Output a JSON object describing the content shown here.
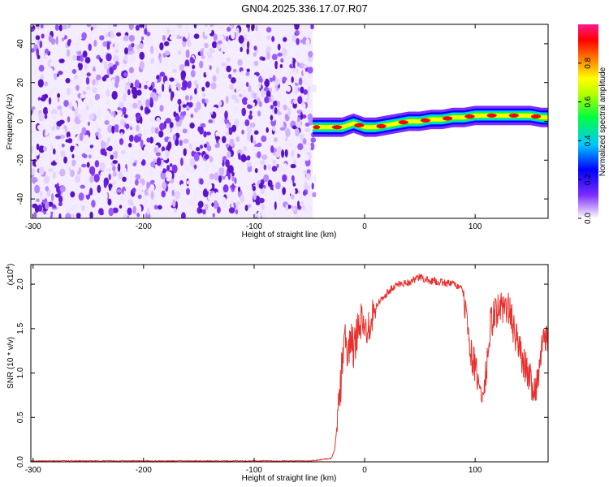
{
  "title": "GN04.2025.336.17.07.R07",
  "chart_data": [
    {
      "type": "heatmap",
      "xlabel": "Height of straight line (km)",
      "ylabel": "Frequency (Hz)",
      "xlim": [
        -302,
        166
      ],
      "ylim": [
        -50,
        50
      ],
      "x_ticks": [
        -300,
        -200,
        -100,
        0,
        100
      ],
      "x_tick_labels": [
        "-300",
        "-200",
        "-100",
        "0",
        "100"
      ],
      "y_ticks": [
        -40,
        -20,
        0,
        20,
        40
      ],
      "y_tick_labels": [
        "-40",
        "-20",
        "0",
        "20",
        "40"
      ],
      "noise_region_km": [
        -302,
        -47
      ],
      "ridge": {
        "x_km": [
          -47,
          -40,
          -30,
          -20,
          -10,
          0,
          10,
          20,
          30,
          40,
          50,
          60,
          70,
          80,
          90,
          100,
          110,
          120,
          130,
          140,
          150,
          160,
          166
        ],
        "freq_hz": [
          -3,
          -3,
          -3,
          -3,
          -1,
          -3,
          -3,
          -2,
          -1,
          0,
          0,
          1,
          1,
          2,
          2,
          3,
          3,
          3,
          3,
          3,
          3,
          2,
          2
        ],
        "peak_amplitude": 1.0
      },
      "colorbar": {
        "label": "Normalized spectral amplitude",
        "ticks": [
          0.0,
          0.2,
          0.4,
          0.6,
          0.8
        ],
        "tick_labels": [
          "0.0",
          "0.2",
          "0.4",
          "0.6",
          "0.8"
        ],
        "colors": [
          "#ffffff",
          "#7b2cff",
          "#0000ff",
          "#00c8ff",
          "#00ff40",
          "#b4ff00",
          "#ffff00",
          "#ff8000",
          "#ff0000",
          "#ff1a8c"
        ]
      },
      "grid": false
    },
    {
      "type": "line",
      "xlabel": "Height of straight line (km)",
      "ylabel": "SNR (10 * v/v)",
      "y_multiplier_label": "(x10",
      "y_multiplier_exp": "4",
      "y_multiplier_close": ")",
      "xlim": [
        -302,
        166
      ],
      "ylim": [
        0,
        2.22
      ],
      "x_ticks": [
        -300,
        -200,
        -100,
        0,
        100
      ],
      "x_tick_labels": [
        "-300",
        "-200",
        "-100",
        "0",
        "100"
      ],
      "y_ticks": [
        0,
        0.5,
        1.0,
        1.5,
        2.0
      ],
      "y_tick_labels": [
        "0.0",
        "0.5",
        "1.0",
        "1.5",
        "2.0"
      ],
      "line_color": "#e8302c",
      "series": [
        {
          "x": [
            -302,
            -250,
            -200,
            -150,
            -100,
            -50,
            -30,
            -27,
            -25,
            -22,
            -20,
            -17,
            -15,
            -12,
            -10,
            -5,
            0,
            10,
            20,
            30,
            40,
            50,
            55,
            60,
            70,
            80,
            86,
            90,
            92,
            94,
            97,
            100,
            103,
            106,
            108,
            110,
            114,
            118,
            122,
            126,
            130,
            134,
            138,
            142,
            146,
            150,
            153,
            156,
            159,
            162,
            166
          ],
          "y": [
            0.01,
            0.01,
            0.01,
            0.01,
            0.01,
            0.01,
            0.04,
            0.15,
            0.4,
            0.8,
            1.2,
            1.4,
            1.1,
            1.5,
            1.2,
            1.65,
            1.45,
            1.75,
            1.9,
            2.0,
            2.02,
            2.08,
            2.05,
            2.04,
            2.02,
            2.0,
            1.97,
            1.88,
            1.6,
            1.4,
            1.2,
            1.05,
            0.88,
            0.72,
            0.8,
            1.0,
            1.55,
            1.68,
            1.72,
            1.75,
            1.73,
            1.55,
            1.35,
            1.2,
            1.05,
            0.95,
            0.8,
            0.9,
            1.15,
            1.35,
            1.45
          ],
          "noise_amplitude": 0.12
        }
      ],
      "grid": false
    }
  ]
}
